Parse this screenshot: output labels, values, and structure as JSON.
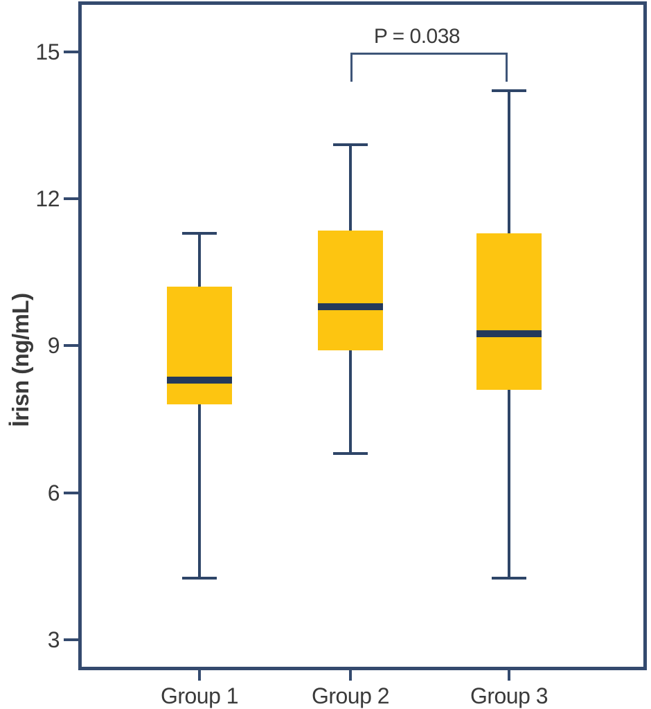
{
  "figure": {
    "background": "#ffffff"
  },
  "chart_data": {
    "type": "boxplot",
    "title": "",
    "xlabel": "",
    "ylabel": "İrisn (ng/mL)",
    "ylim": [
      2.4,
      16.0
    ],
    "yticks": [
      3,
      6,
      9,
      12,
      15
    ],
    "grid": false,
    "legend": null,
    "categories": [
      "Group 1",
      "Group 2",
      "Group 3"
    ],
    "series": [
      {
        "label": "Group 1",
        "whisker_low": 4.25,
        "q1": 7.8,
        "median": 8.3,
        "q3": 10.2,
        "whisker_high": 11.3
      },
      {
        "label": "Group 2",
        "whisker_low": 6.8,
        "q1": 8.9,
        "median": 9.8,
        "q3": 11.35,
        "whisker_high": 13.1
      },
      {
        "label": "Group 3",
        "whisker_low": 4.25,
        "q1": 8.1,
        "median": 9.25,
        "q3": 11.3,
        "whisker_high": 14.2
      }
    ],
    "annotation": {
      "text": "P = 0.038",
      "compares": [
        "Group 2",
        "Group 3"
      ],
      "bracket_y": 15.0
    },
    "colors": {
      "box_fill": "#FDC511",
      "median": "#24395B",
      "whisker": "#2E4568",
      "axis_border": "#344A6E",
      "bracket": "#3E5578",
      "text": "#3A3A3A"
    }
  }
}
